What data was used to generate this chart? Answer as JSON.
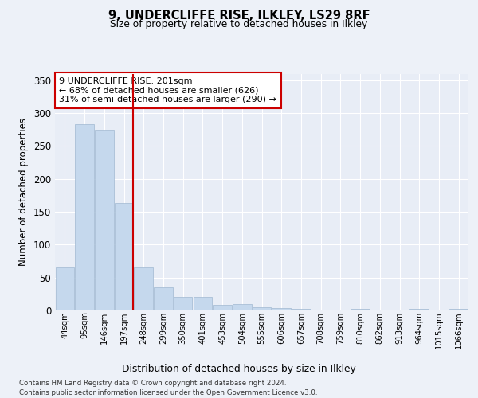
{
  "title": "9, UNDERCLIFFE RISE, ILKLEY, LS29 8RF",
  "subtitle": "Size of property relative to detached houses in Ilkley",
  "xlabel": "Distribution of detached houses by size in Ilkley",
  "ylabel": "Number of detached properties",
  "bar_labels": [
    "44sqm",
    "95sqm",
    "146sqm",
    "197sqm",
    "248sqm",
    "299sqm",
    "350sqm",
    "401sqm",
    "453sqm",
    "504sqm",
    "555sqm",
    "606sqm",
    "657sqm",
    "708sqm",
    "759sqm",
    "810sqm",
    "862sqm",
    "913sqm",
    "964sqm",
    "1015sqm",
    "1066sqm"
  ],
  "bar_values": [
    65,
    283,
    275,
    163,
    65,
    35,
    20,
    20,
    8,
    10,
    5,
    4,
    3,
    1,
    0,
    2,
    0,
    0,
    2,
    0,
    2
  ],
  "bar_color": "#c5d8ed",
  "bar_edgecolor": "#a0b8d0",
  "redline_x": 3.48,
  "annotation_title": "9 UNDERCLIFFE RISE: 201sqm",
  "annotation_line1": "← 68% of detached houses are smaller (626)",
  "annotation_line2": "31% of semi-detached houses are larger (290) →",
  "redline_color": "#cc0000",
  "annotation_box_edgecolor": "#cc0000",
  "ylim": [
    0,
    360
  ],
  "yticks": [
    0,
    50,
    100,
    150,
    200,
    250,
    300,
    350
  ],
  "bg_color": "#edf1f8",
  "plot_bg_color": "#e8edf6",
  "grid_color": "#ffffff",
  "footnote1": "Contains HM Land Registry data © Crown copyright and database right 2024.",
  "footnote2": "Contains public sector information licensed under the Open Government Licence v3.0."
}
